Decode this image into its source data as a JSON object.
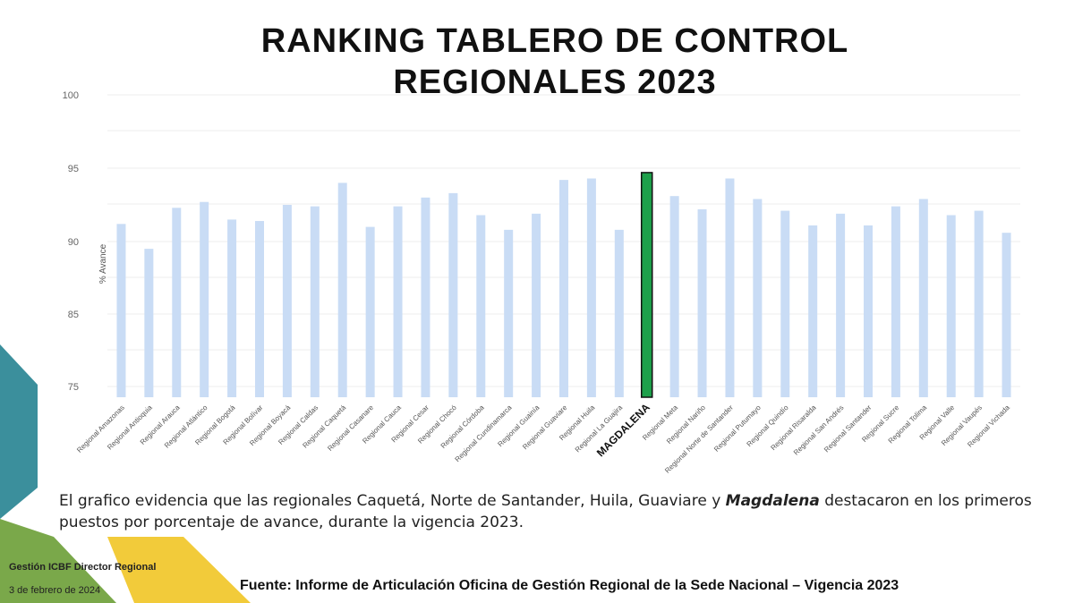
{
  "title_line1": "RANKING TABLERO DE CONTROL",
  "title_line2": "REGIONALES 2023",
  "chart_data": {
    "type": "bar",
    "ylabel": "% Avance",
    "ylim": [
      75,
      100
    ],
    "yticks": [
      75,
      85,
      90,
      95,
      100
    ],
    "grid": true,
    "categories": [
      "Regional Amazonas",
      "Regional Antioquia",
      "Regional Arauca",
      "Regional Atlántico",
      "Regional Bogotá",
      "Regional Bolívar",
      "Regional Boyacá",
      "Regional Caldas",
      "Regional Caquetá",
      "Regional Casanare",
      "Regional Cauca",
      "Regional Cesar",
      "Regional Chocó",
      "Regional Córdoba",
      "Regional Cundinamarca",
      "Regional Guainía",
      "Regional Guaviare",
      "Regional Huila",
      "Regional La Guajira",
      "MAGDALENA",
      "Regional Meta",
      "Regional Nariño",
      "Regional Norte de Santander",
      "Regional Putumayo",
      "Regional Quindío",
      "Regional Risaralda",
      "Regional San Andrés",
      "Regional Santander",
      "Regional Sucre",
      "Regional Tolima",
      "Regional Valle",
      "Regional Vaupés",
      "Regional Vichada"
    ],
    "values": [
      91.2,
      89.5,
      92.3,
      92.7,
      91.5,
      91.4,
      92.5,
      92.4,
      94.0,
      91.0,
      92.4,
      93.0,
      93.3,
      91.8,
      90.8,
      91.9,
      94.2,
      94.3,
      90.8,
      94.7,
      93.1,
      92.2,
      94.3,
      92.9,
      92.1,
      91.1,
      91.9,
      91.1,
      92.4,
      92.9,
      91.8,
      92.1,
      90.6
    ],
    "highlight_index": 19,
    "colors": {
      "bar": "#c9dcf5",
      "highlight": "#1ea04b",
      "highlight_stroke": "#111111",
      "grid": "#eeeeee"
    }
  },
  "caption_before": "El grafico evidencia que las regionales Caquetá, Norte de Santander, Huila, Guaviare y ",
  "caption_highlight": "Magdalena",
  "caption_after": " destacaron en los primeros puestos por porcentaje de avance, durante la vigencia 2023.",
  "footer_org": "Gestión ICBF Director Regional",
  "footer_date": "3 de febrero de 2024",
  "source": "Fuente: Informe de Articulación Oficina de Gestión Regional de la Sede Nacional – Vigencia 2023",
  "colors": {
    "teal": "#3b8f9c",
    "green": "#7aa84a",
    "yellow": "#f2cb3a"
  }
}
